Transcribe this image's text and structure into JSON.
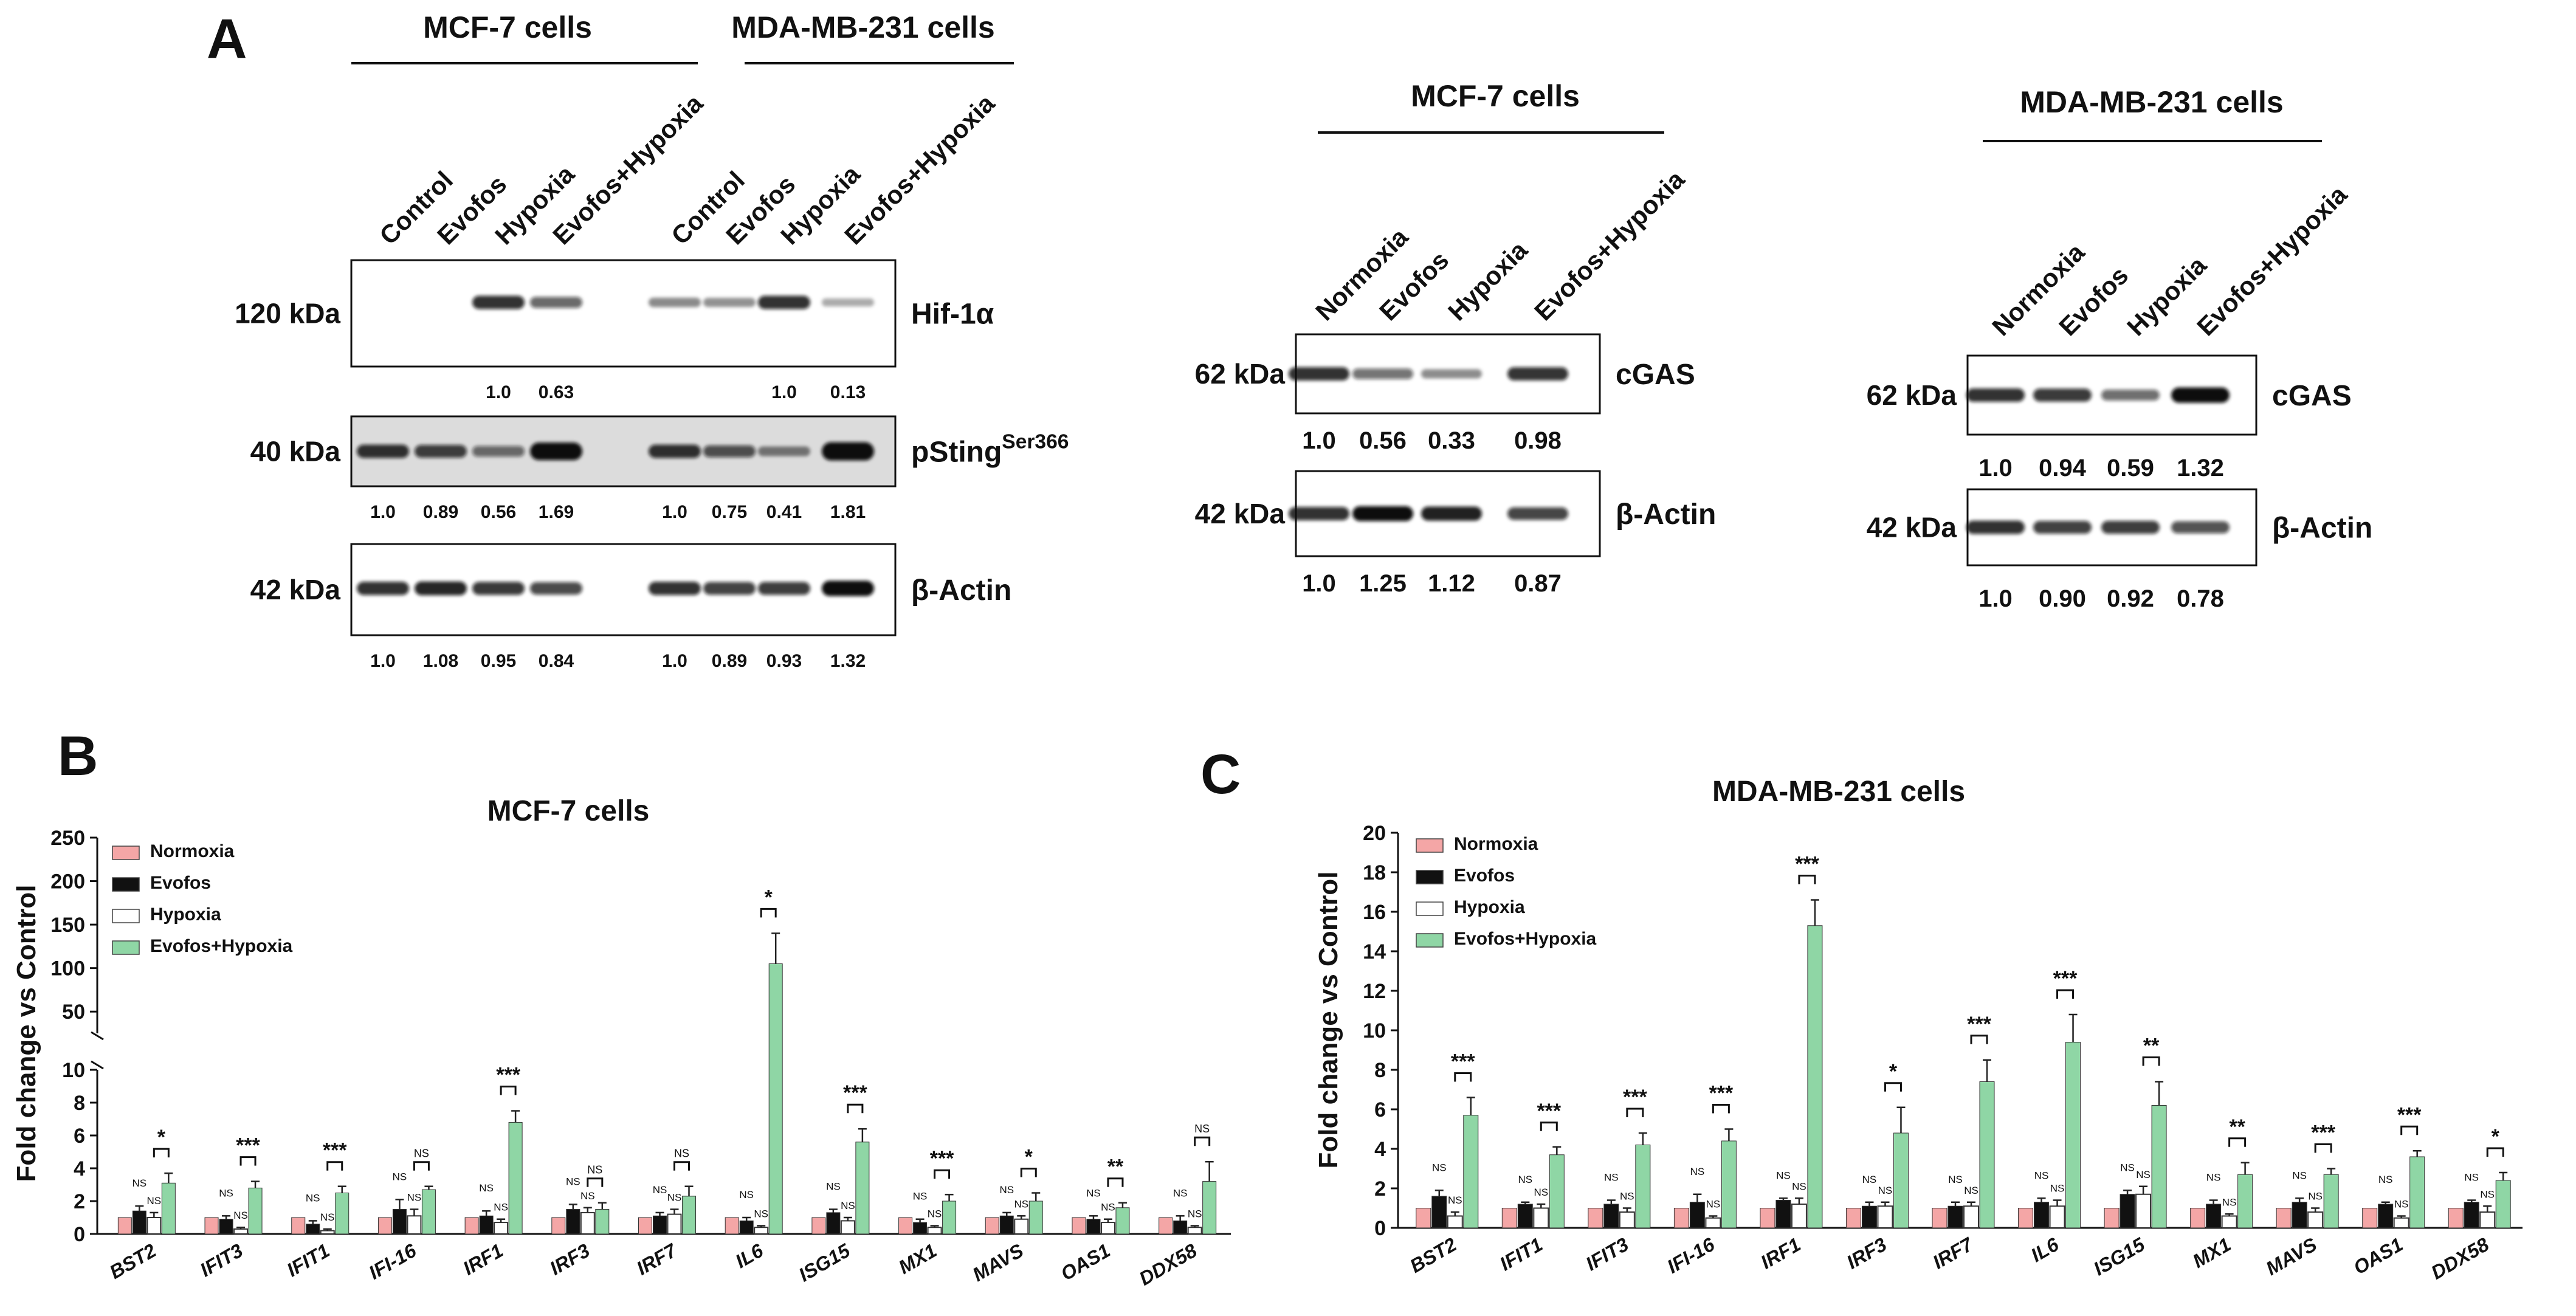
{
  "figure": {
    "panel_labels": [
      "A",
      "B",
      "C"
    ],
    "significance_marker": "NS"
  },
  "panel_a": {
    "left_blot": {
      "group_headers": [
        "MCF-7 cells",
        "MDA-MB-231 cells"
      ],
      "lanes": [
        "Control",
        "Evofos",
        "Hypoxia",
        "Evofos+Hypoxia",
        "Control",
        "Evofos",
        "Hypoxia",
        "Evofos+Hypoxia"
      ],
      "rows": [
        {
          "size": "120 kDa",
          "protein": "Hif-1α",
          "values": [
            "",
            "",
            "1.0",
            "0.63",
            "",
            "",
            "1.0",
            "0.13"
          ],
          "intensities": [
            0,
            0,
            1.0,
            0.63,
            0.35,
            0.3,
            1.0,
            0.13
          ]
        },
        {
          "size": "40 kDa",
          "protein": "pSting",
          "protein_sup": "Ser366",
          "values": [
            "1.0",
            "0.89",
            "0.56",
            "1.69",
            "1.0",
            "0.75",
            "0.41",
            "1.81"
          ],
          "intensities": [
            1.0,
            0.89,
            0.56,
            1.69,
            1.0,
            0.75,
            0.41,
            1.81
          ]
        },
        {
          "size": "42 kDa",
          "protein": "β-Actin",
          "values": [
            "1.0",
            "1.08",
            "0.95",
            "0.84",
            "1.0",
            "0.89",
            "0.93",
            "1.32"
          ],
          "intensities": [
            1.0,
            1.08,
            0.95,
            0.84,
            1.0,
            0.89,
            0.93,
            1.32
          ]
        }
      ]
    },
    "mid_blot": {
      "title": "MCF-7 cells",
      "lanes": [
        "Normoxia",
        "Evofos",
        "Hypoxia",
        "Evofos+Hypoxia"
      ],
      "rows": [
        {
          "size": "62 kDa",
          "protein": "cGAS",
          "values": [
            "1.0",
            "0.56",
            "0.33",
            "0.98"
          ]
        },
        {
          "size": "42 kDa",
          "protein": "β-Actin",
          "values": [
            "1.0",
            "1.25",
            "1.12",
            "0.87"
          ]
        }
      ]
    },
    "right_blot": {
      "title": "MDA-MB-231 cells",
      "lanes": [
        "Normoxia",
        "Evofos",
        "Hypoxia",
        "Evofos+Hypoxia"
      ],
      "rows": [
        {
          "size": "62 kDa",
          "protein": "cGAS",
          "values": [
            "1.0",
            "0.94",
            "0.59",
            "1.32"
          ]
        },
        {
          "size": "42 kDa",
          "protein": "β-Actin",
          "values": [
            "1.0",
            "0.90",
            "0.92",
            "0.78"
          ]
        }
      ]
    }
  },
  "colors": {
    "normoxia": "#f4a6a6",
    "evofos": "#111111",
    "hypoxia": "#ffffff",
    "evofos_hypoxia": "#8fd6a5"
  },
  "chart_data": [
    {
      "type": "bar",
      "panel": "B",
      "title": "MCF-7 cells",
      "xlabel": "",
      "ylabel": "Fold change vs Control",
      "axis_break": {
        "lower": [
          0,
          10
        ],
        "upper": [
          25,
          250
        ]
      },
      "yticks_lower": [
        "0",
        "2",
        "4",
        "6",
        "8",
        "10"
      ],
      "yticks_upper": [
        "50",
        "100",
        "150",
        "200",
        "250"
      ],
      "legend": [
        "Normoxia",
        "Evofos",
        "Hypoxia",
        "Evofos+Hypoxia"
      ],
      "categories": [
        "BST2",
        "IFIT3",
        "IFIT1",
        "IFI-16",
        "IRF1",
        "IRF3",
        "IRF7",
        "IL6",
        "ISG15",
        "MX1",
        "MAVS",
        "OAS1",
        "DDX58"
      ],
      "series": [
        {
          "name": "Normoxia",
          "values": [
            1,
            1,
            1,
            1,
            1,
            1,
            1,
            1,
            1,
            1,
            1,
            1,
            1
          ],
          "errors": [
            0,
            0,
            0,
            0,
            0,
            0,
            0,
            0,
            0,
            0,
            0,
            0,
            0
          ]
        },
        {
          "name": "Evofos",
          "values": [
            1.4,
            0.9,
            0.6,
            1.5,
            1.1,
            1.5,
            1.1,
            0.8,
            1.3,
            0.7,
            1.1,
            0.9,
            0.8
          ],
          "errors": [
            0.3,
            0.2,
            0.2,
            0.6,
            0.3,
            0.3,
            0.2,
            0.2,
            0.2,
            0.2,
            0.2,
            0.2,
            0.3
          ]
        },
        {
          "name": "Hypoxia",
          "values": [
            1.0,
            0.3,
            0.2,
            1.1,
            0.7,
            1.3,
            1.2,
            0.4,
            0.8,
            0.4,
            0.9,
            0.7,
            0.4
          ],
          "errors": [
            0.3,
            0.1,
            0.1,
            0.4,
            0.2,
            0.3,
            0.3,
            0.1,
            0.2,
            0.1,
            0.2,
            0.2,
            0.1
          ]
        },
        {
          "name": "Evofos+Hypoxia",
          "values": [
            3.1,
            2.8,
            2.5,
            2.7,
            6.8,
            1.5,
            2.3,
            105,
            5.6,
            2.0,
            2.0,
            1.6,
            3.2
          ],
          "errors": [
            0.6,
            0.4,
            0.4,
            0.2,
            0.7,
            0.4,
            0.6,
            35,
            0.8,
            0.4,
            0.5,
            0.3,
            1.2
          ]
        }
      ],
      "annotations": [
        {
          "category": "BST2",
          "eh_label": "*",
          "evofos_label": "NS",
          "hypoxia_label": "NS"
        },
        {
          "category": "IFIT3",
          "eh_label": "***",
          "evofos_label": "NS",
          "hypoxia_label": "NS"
        },
        {
          "category": "IFIT1",
          "eh_label": "***",
          "evofos_label": "NS",
          "hypoxia_label": "NS"
        },
        {
          "category": "IFI-16",
          "eh_label": "NS",
          "evofos_label": "NS",
          "hypoxia_label": "NS"
        },
        {
          "category": "IRF1",
          "eh_label": "***",
          "evofos_label": "NS",
          "hypoxia_label": "NS"
        },
        {
          "category": "IRF3",
          "eh_label": "NS",
          "evofos_label": "NS",
          "hypoxia_label": "NS"
        },
        {
          "category": "IRF7",
          "eh_label": "NS",
          "evofos_label": "NS",
          "hypoxia_label": "NS"
        },
        {
          "category": "IL6",
          "eh_label": "*",
          "evofos_label": "NS",
          "hypoxia_label": "NS"
        },
        {
          "category": "ISG15",
          "eh_label": "***",
          "evofos_label": "NS",
          "hypoxia_label": "NS"
        },
        {
          "category": "MX1",
          "eh_label": "***",
          "evofos_label": "NS",
          "hypoxia_label": "NS"
        },
        {
          "category": "MAVS",
          "eh_label": "*",
          "evofos_label": "NS",
          "hypoxia_label": "NS"
        },
        {
          "category": "OAS1",
          "eh_label": "**",
          "evofos_label": "NS",
          "hypoxia_label": "NS"
        },
        {
          "category": "DDX58",
          "eh_label": "NS",
          "evofos_label": "NS",
          "hypoxia_label": "NS"
        }
      ]
    },
    {
      "type": "bar",
      "panel": "C",
      "title": "MDA-MB-231 cells",
      "xlabel": "",
      "ylabel": "Fold change vs Control",
      "ylim": [
        0,
        20
      ],
      "yticks": [
        "0",
        "2",
        "4",
        "6",
        "8",
        "10",
        "12",
        "14",
        "16",
        "18",
        "20"
      ],
      "legend": [
        "Normoxia",
        "Evofos",
        "Hypoxia",
        "Evofos+Hypoxia"
      ],
      "categories": [
        "BST2",
        "IFIT1",
        "IFIT3",
        "IFI-16",
        "IRF1",
        "IRF3",
        "IRF7",
        "IL6",
        "ISG15",
        "MX1",
        "MAVS",
        "OAS1",
        "DDX58"
      ],
      "series": [
        {
          "name": "Normoxia",
          "values": [
            1,
            1,
            1,
            1,
            1,
            1,
            1,
            1,
            1,
            1,
            1,
            1,
            1
          ],
          "errors": [
            0,
            0,
            0,
            0,
            0,
            0,
            0,
            0,
            0,
            0,
            0,
            0,
            0
          ]
        },
        {
          "name": "Evofos",
          "values": [
            1.6,
            1.2,
            1.2,
            1.3,
            1.4,
            1.1,
            1.1,
            1.3,
            1.7,
            1.2,
            1.3,
            1.2,
            1.3
          ],
          "errors": [
            0.3,
            0.1,
            0.2,
            0.4,
            0.1,
            0.2,
            0.2,
            0.2,
            0.2,
            0.2,
            0.2,
            0.1,
            0.1
          ]
        },
        {
          "name": "Hypoxia",
          "values": [
            0.6,
            1.0,
            0.8,
            0.5,
            1.2,
            1.1,
            1.1,
            1.1,
            1.7,
            0.6,
            0.8,
            0.5,
            0.8
          ],
          "errors": [
            0.2,
            0.2,
            0.2,
            0.1,
            0.3,
            0.2,
            0.2,
            0.3,
            0.4,
            0.1,
            0.2,
            0.1,
            0.3
          ]
        },
        {
          "name": "Evofos+Hypoxia",
          "values": [
            5.7,
            3.7,
            4.2,
            4.4,
            15.3,
            4.8,
            7.4,
            9.4,
            6.2,
            2.7,
            2.7,
            3.6,
            2.4
          ],
          "errors": [
            0.9,
            0.4,
            0.6,
            0.6,
            1.3,
            1.3,
            1.1,
            1.4,
            1.2,
            0.6,
            0.3,
            0.3,
            0.4
          ]
        }
      ],
      "annotations": [
        {
          "category": "BST2",
          "eh_label": "***",
          "evofos_label": "NS",
          "hypoxia_label": "NS"
        },
        {
          "category": "IFIT1",
          "eh_label": "***",
          "evofos_label": "NS",
          "hypoxia_label": "NS"
        },
        {
          "category": "IFIT3",
          "eh_label": "***",
          "evofos_label": "NS",
          "hypoxia_label": "NS"
        },
        {
          "category": "IFI-16",
          "eh_label": "***",
          "evofos_label": "NS",
          "hypoxia_label": "NS"
        },
        {
          "category": "IRF1",
          "eh_label": "***",
          "evofos_label": "NS",
          "hypoxia_label": "NS"
        },
        {
          "category": "IRF3",
          "eh_label": "*",
          "evofos_label": "NS",
          "hypoxia_label": "NS"
        },
        {
          "category": "IRF7",
          "eh_label": "***",
          "evofos_label": "NS",
          "hypoxia_label": "NS"
        },
        {
          "category": "IL6",
          "eh_label": "***",
          "evofos_label": "NS",
          "hypoxia_label": "NS"
        },
        {
          "category": "ISG15",
          "eh_label": "**",
          "evofos_label": "NS",
          "hypoxia_label": "NS"
        },
        {
          "category": "MX1",
          "eh_label": "**",
          "evofos_label": "NS",
          "hypoxia_label": "NS"
        },
        {
          "category": "MAVS",
          "eh_label": "***",
          "evofos_label": "NS",
          "hypoxia_label": "NS"
        },
        {
          "category": "OAS1",
          "eh_label": "***",
          "evofos_label": "NS",
          "hypoxia_label": "NS"
        },
        {
          "category": "DDX58",
          "eh_label": "*",
          "evofos_label": "NS",
          "hypoxia_label": "NS"
        }
      ]
    }
  ]
}
